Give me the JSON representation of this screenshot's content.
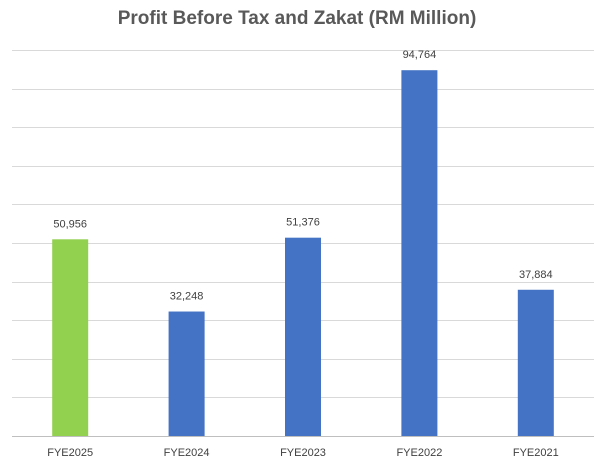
{
  "chart_data": {
    "type": "bar",
    "title": "Profit Before Tax and Zakat (RM Million)",
    "xlabel": "",
    "ylabel": "",
    "categories": [
      "FYE2025",
      "FYE2024",
      "FYE2023",
      "FYE2022",
      "FYE2021"
    ],
    "values": [
      50956,
      32248,
      51376,
      94764,
      37884
    ],
    "data_labels": [
      "50,956",
      "32,248",
      "51,376",
      "94,764",
      "37,884"
    ],
    "ylim": [
      0,
      100000
    ],
    "grid": true,
    "legend": "none",
    "colors": [
      "#92d050",
      "#4472c4",
      "#4472c4",
      "#4472c4",
      "#4472c4"
    ]
  }
}
